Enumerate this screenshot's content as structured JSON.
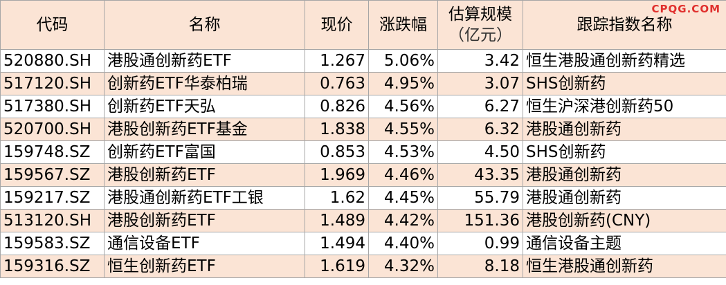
{
  "watermark": "CPQG.COM",
  "table": {
    "header": [
      "代码",
      "名称",
      "现价",
      "涨跌幅",
      "估算规模",
      "跟踪指数名称"
    ],
    "header_sub": "（亿元）",
    "rows": [
      [
        "520880.SH",
        "港股通创新药ETF",
        "1.267",
        "5.06%",
        "3.42",
        "恒生港股通创新药精选"
      ],
      [
        "517120.SH",
        "创新药ETF华泰柏瑞",
        "0.763",
        "4.95%",
        "3.07",
        "SHS创新药"
      ],
      [
        "517380.SH",
        "创新药ETF天弘",
        "0.826",
        "4.56%",
        "6.27",
        "恒生沪深港创新药50"
      ],
      [
        "520700.SH",
        "港股创新药ETF基金",
        "1.838",
        "4.55%",
        "6.32",
        "港股通创新药"
      ],
      [
        "159748.SZ",
        "创新药ETF富国",
        "0.853",
        "4.53%",
        "4.50",
        "SHS创新药"
      ],
      [
        "159567.SZ",
        "港股创新药ETF",
        "1.969",
        "4.46%",
        "43.35",
        "港股通创新药"
      ],
      [
        "159217.SZ",
        "港股通创新药ETF工银",
        "1.62",
        "4.45%",
        "55.79",
        "港股通创新药"
      ],
      [
        "513120.SH",
        "港股创新药ETF",
        "1.489",
        "4.42%",
        "151.36",
        "港股创新药(CNY)"
      ],
      [
        "159583.SZ",
        "通信设备ETF",
        "1.494",
        "4.40%",
        "0.99",
        "通信设备主题"
      ],
      [
        "159316.SZ",
        "恒生创新药ETF",
        "1.619",
        "4.32%",
        "8.18",
        "恒生港股通创新药"
      ]
    ]
  }
}
